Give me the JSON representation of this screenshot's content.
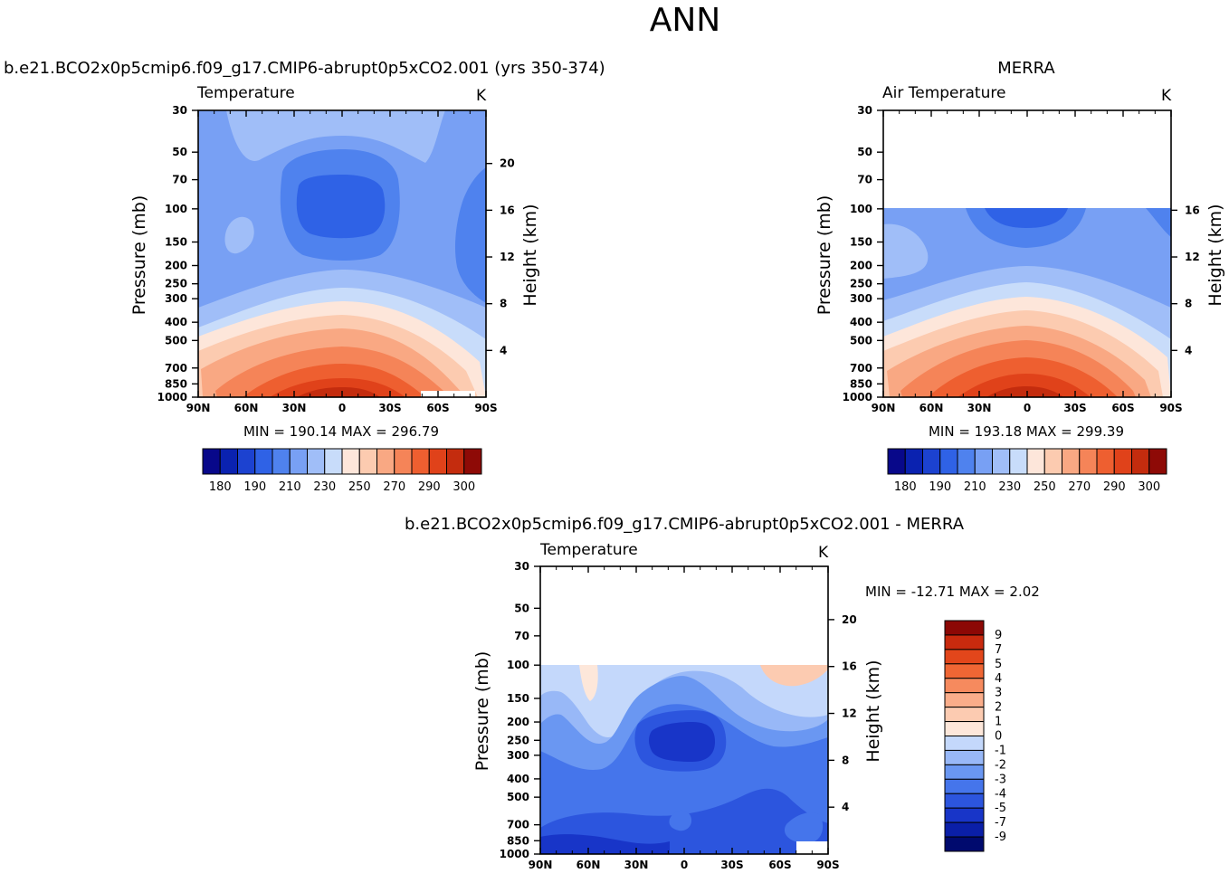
{
  "page_title": "ANN",
  "chart_data": [
    {
      "type": "heatmap",
      "title": "b.e21.BCO2x0p5cmip6.f09_g17.CMIP6-abrupt0p5xCO2.001 (yrs 350-374)",
      "subtitle": "Temperature",
      "units": "K",
      "xlabel": "",
      "ylabel": "Pressure (mb)",
      "y2label": "Height (km)",
      "x_ticks": [
        "90N",
        "60N",
        "30N",
        "0",
        "30S",
        "60S",
        "90S"
      ],
      "y_ticks": [
        "30",
        "50",
        "70",
        "100",
        "150",
        "200",
        "250",
        "300",
        "400",
        "500",
        "700",
        "850",
        "1000"
      ],
      "y2_ticks": [
        "4",
        "8",
        "12",
        "16",
        "20"
      ],
      "stats": "MIN = 190.14   MAX = 296.79",
      "colorbar_labels": [
        "180",
        "190",
        "210",
        "230",
        "250",
        "270",
        "290",
        "300"
      ],
      "colorbar_levels": [
        175,
        180,
        185,
        190,
        200,
        210,
        220,
        230,
        240,
        250,
        260,
        270,
        280,
        290,
        295,
        300,
        305
      ]
    },
    {
      "type": "heatmap",
      "title": "MERRA",
      "subtitle": "Air Temperature",
      "units": "K",
      "xlabel": "",
      "ylabel": "Pressure (mb)",
      "y2label": "Height (km)",
      "x_ticks": [
        "90N",
        "60N",
        "30N",
        "0",
        "30S",
        "60S",
        "90S"
      ],
      "y_ticks": [
        "30",
        "50",
        "70",
        "100",
        "150",
        "200",
        "250",
        "300",
        "400",
        "500",
        "700",
        "850",
        "1000"
      ],
      "y2_ticks": [
        "4",
        "8",
        "12",
        "16"
      ],
      "stats": "MIN = 193.18   MAX = 299.39",
      "colorbar_labels": [
        "180",
        "190",
        "210",
        "230",
        "250",
        "270",
        "290",
        "300"
      ],
      "colorbar_levels": [
        175,
        180,
        185,
        190,
        200,
        210,
        220,
        230,
        240,
        250,
        260,
        270,
        280,
        290,
        295,
        300,
        305
      ]
    },
    {
      "type": "heatmap",
      "title": "b.e21.BCO2x0p5cmip6.f09_g17.CMIP6-abrupt0p5xCO2.001 - MERRA",
      "subtitle": "Temperature",
      "units": "K",
      "xlabel": "",
      "ylabel": "Pressure (mb)",
      "y2label": "Height (km)",
      "x_ticks": [
        "90N",
        "60N",
        "30N",
        "0",
        "30S",
        "60S",
        "90S"
      ],
      "y_ticks": [
        "30",
        "50",
        "70",
        "100",
        "150",
        "200",
        "250",
        "300",
        "400",
        "500",
        "700",
        "850",
        "1000"
      ],
      "y2_ticks": [
        "4",
        "8",
        "12",
        "16",
        "20"
      ],
      "stats": "MIN = -12.71   MAX =    2.02",
      "colorbar_labels": [
        "9",
        "7",
        "5",
        "4",
        "3",
        "2",
        "1",
        "0",
        "-1",
        "-2",
        "-3",
        "-4",
        "-5",
        "-7",
        "-9"
      ],
      "colorbar_levels": [
        -9,
        -7,
        -5,
        -4,
        -3,
        -2,
        -1,
        0,
        1,
        2,
        3,
        4,
        5,
        7,
        9
      ]
    }
  ],
  "colors": {
    "cmap": [
      "#08088a",
      "#0a22b0",
      "#1c42d0",
      "#2f62e6",
      "#4f82ee",
      "#78a0f4",
      "#a0bef8",
      "#c8dcfa",
      "#fde6da",
      "#fccbb0",
      "#f9a883",
      "#f58458",
      "#ee5f30",
      "#e0421a",
      "#c42c0e",
      "#8e0a06"
    ],
    "cmap_diff": [
      "#000a6e",
      "#0a1fa8",
      "#1835c8",
      "#2c55de",
      "#4575eb",
      "#6a97f2",
      "#98b8f7",
      "#c4d8fb",
      "#fde7da",
      "#fccbb1",
      "#faad8a",
      "#f68a5e",
      "#ef6634",
      "#e2461b",
      "#c92a0e",
      "#8c0805"
    ]
  }
}
